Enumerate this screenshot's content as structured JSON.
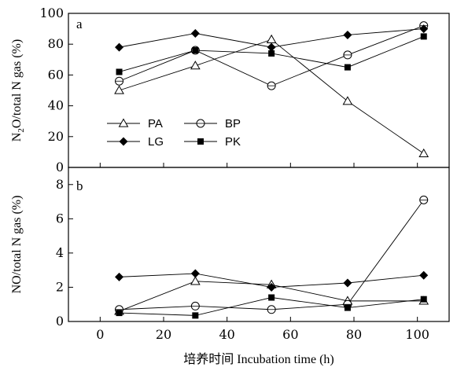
{
  "chart_data": [
    {
      "panel": "a",
      "type": "line",
      "x": [
        6,
        30,
        54,
        78,
        102
      ],
      "xlim": [
        -10,
        110
      ],
      "ylim": [
        0,
        100
      ],
      "yticks": [
        0,
        20,
        40,
        60,
        80,
        100
      ],
      "ylabel_parts": [
        "N",
        "2",
        "O/total N gas (%)"
      ],
      "series": [
        {
          "name": "PA",
          "marker": "triangle-open",
          "values": [
            50,
            66,
            83,
            43,
            9
          ]
        },
        {
          "name": "BP",
          "marker": "circle-open",
          "values": [
            56,
            76,
            53,
            73,
            92
          ]
        },
        {
          "name": "LG",
          "marker": "diamond-filled",
          "values": [
            78,
            87,
            78,
            86,
            90
          ]
        },
        {
          "name": "PK",
          "marker": "square-filled",
          "values": [
            62,
            76,
            74,
            65,
            85
          ]
        }
      ],
      "legend_position": "lower-left"
    },
    {
      "panel": "b",
      "type": "line",
      "x": [
        6,
        30,
        54,
        78,
        102
      ],
      "xlim": [
        -10,
        110
      ],
      "ylim": [
        0,
        9
      ],
      "yticks": [
        0,
        2,
        4,
        6,
        8
      ],
      "xticks": [
        0,
        20,
        40,
        60,
        80,
        100
      ],
      "ylabel": "NO/total N gas (%)",
      "series": [
        {
          "name": "PA",
          "marker": "triangle-open",
          "values": [
            0.6,
            2.35,
            2.15,
            1.2,
            1.2
          ]
        },
        {
          "name": "BP",
          "marker": "circle-open",
          "values": [
            0.7,
            0.9,
            0.7,
            1.0,
            7.1
          ]
        },
        {
          "name": "LG",
          "marker": "diamond-filled",
          "values": [
            2.6,
            2.8,
            2.0,
            2.25,
            2.7
          ]
        },
        {
          "name": "PK",
          "marker": "square-filled",
          "values": [
            0.5,
            0.35,
            1.4,
            0.8,
            1.3
          ]
        }
      ]
    }
  ],
  "xlabel": "培养时间  Incubation time (h)"
}
